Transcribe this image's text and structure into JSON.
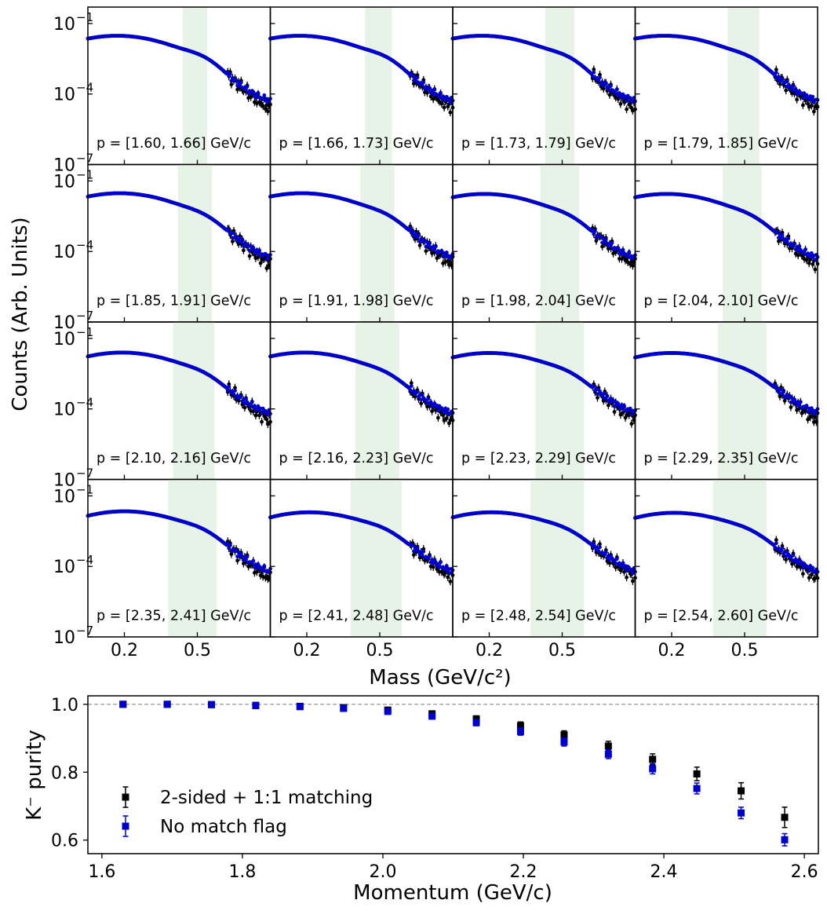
{
  "figure": {
    "ylabel_top": "Counts (Arb. Units)",
    "xlabel_top": "Mass (GeV/c²)",
    "ylabel_bottom": "K⁻ purity",
    "xlabel_bottom": "Momentum (GeV/c)"
  },
  "colors": {
    "black_series": "#000000",
    "blue_series": "#0000cc",
    "shade": "#e6f3e6",
    "refline": "#888888"
  },
  "chart_data": [
    {
      "type": "scatter",
      "kind": "mass-spectra-grid",
      "rows": 4,
      "cols": 4,
      "yscale": "log",
      "ylim": [
        1e-07,
        0.5
      ],
      "xlim": [
        0.05,
        0.8
      ],
      "x_ticks": [
        0.2,
        0.5
      ],
      "x_tick_labels": [
        "0.2",
        "0.5"
      ],
      "y_ticks": [
        1e-07,
        0.0001,
        0.1
      ],
      "y_tick_labels": [
        "10",
        "10",
        "10"
      ],
      "y_tick_exponents": [
        "−7",
        "−4",
        "−1"
      ],
      "series_names": [
        "2-sided + 1:1 matching",
        "No match flag"
      ],
      "panels": [
        {
          "label": "p = [1.60, 1.66] GeV/c",
          "band": [
            0.44,
            0.54
          ],
          "pion_peak": 0.17,
          "pion_height": 0.03,
          "kaon_height": 0.0016,
          "dip": 0.00012,
          "tail_blue": 4e-05,
          "tail_black": 1.2e-05
        },
        {
          "label": "p = [1.66, 1.73] GeV/c",
          "band": [
            0.44,
            0.55
          ],
          "pion_peak": 0.17,
          "pion_height": 0.03,
          "kaon_height": 0.0015,
          "dip": 0.00013,
          "tail_blue": 4e-05,
          "tail_black": 1.4e-05
        },
        {
          "label": "p = [1.73, 1.79] GeV/c",
          "band": [
            0.43,
            0.55
          ],
          "pion_peak": 0.17,
          "pion_height": 0.03,
          "kaon_height": 0.0015,
          "dip": 0.00014,
          "tail_blue": 4e-05,
          "tail_black": 1.3e-05
        },
        {
          "label": "p = [1.79, 1.85] GeV/c",
          "band": [
            0.43,
            0.56
          ],
          "pion_peak": 0.17,
          "pion_height": 0.03,
          "kaon_height": 0.0013,
          "dip": 0.00017,
          "tail_blue": 4e-05,
          "tail_black": 1.3e-05
        },
        {
          "label": "p = [1.85, 1.91] GeV/c",
          "band": [
            0.42,
            0.56
          ],
          "pion_peak": 0.18,
          "pion_height": 0.03,
          "kaon_height": 0.0012,
          "dip": 0.00019,
          "tail_blue": 4e-05,
          "tail_black": 1.3e-05
        },
        {
          "label": "p = [1.91, 1.98] GeV/c",
          "band": [
            0.42,
            0.56
          ],
          "pion_peak": 0.18,
          "pion_height": 0.03,
          "kaon_height": 0.0012,
          "dip": 0.00022,
          "tail_blue": 4e-05,
          "tail_black": 1.4e-05
        },
        {
          "label": "p = [1.98, 2.04] GeV/c",
          "band": [
            0.41,
            0.57
          ],
          "pion_peak": 0.18,
          "pion_height": 0.028,
          "kaon_height": 0.0011,
          "dip": 0.00026,
          "tail_blue": 4e-05,
          "tail_black": 1.5e-05
        },
        {
          "label": "p = [2.04, 2.10] GeV/c",
          "band": [
            0.41,
            0.57
          ],
          "pion_peak": 0.18,
          "pion_height": 0.028,
          "kaon_height": 0.001,
          "dip": 0.0003,
          "tail_blue": 4e-05,
          "tail_black": 1.2e-05
        },
        {
          "label": "p = [2.10, 2.16] GeV/c",
          "band": [
            0.4,
            0.57
          ],
          "pion_peak": 0.19,
          "pion_height": 0.025,
          "kaon_height": 0.001,
          "dip": 0.00035,
          "tail_blue": 5e-05,
          "tail_black": 1.5e-05
        },
        {
          "label": "p = [2.16, 2.23] GeV/c",
          "band": [
            0.4,
            0.58
          ],
          "pion_peak": 0.19,
          "pion_height": 0.025,
          "kaon_height": 0.001,
          "dip": 0.00042,
          "tail_blue": 5e-05,
          "tail_black": 1.5e-05
        },
        {
          "label": "p = [2.23, 2.29] GeV/c",
          "band": [
            0.39,
            0.59
          ],
          "pion_peak": 0.2,
          "pion_height": 0.024,
          "kaon_height": 0.001,
          "dip": 0.0005,
          "tail_blue": 5e-05,
          "tail_black": 1.5e-05
        },
        {
          "label": "p = [2.29, 2.35] GeV/c",
          "band": [
            0.39,
            0.59
          ],
          "pion_peak": 0.2,
          "pion_height": 0.024,
          "kaon_height": 0.0009,
          "dip": 0.0006,
          "tail_blue": 5e-05,
          "tail_black": 1.3e-05
        },
        {
          "label": "p = [2.35, 2.41] GeV/c",
          "band": [
            0.38,
            0.58
          ],
          "pion_peak": 0.2,
          "pion_height": 0.022,
          "kaon_height": 0.0011,
          "dip": 0.0007,
          "tail_blue": 4e-05,
          "tail_black": 1.2e-05
        },
        {
          "label": "p = [2.41, 2.48] GeV/c",
          "band": [
            0.38,
            0.59
          ],
          "pion_peak": 0.21,
          "pion_height": 0.02,
          "kaon_height": 0.001,
          "dip": 0.0008,
          "tail_blue": 4e-05,
          "tail_black": 1.2e-05
        },
        {
          "label": "p = [2.48, 2.54] GeV/c",
          "band": [
            0.37,
            0.59
          ],
          "pion_peak": 0.21,
          "pion_height": 0.02,
          "kaon_height": 0.0009,
          "dip": 0.0009,
          "tail_blue": 4e-05,
          "tail_black": 1.4e-05
        },
        {
          "label": "p = [2.54, 2.60] GeV/c",
          "band": [
            0.37,
            0.59
          ],
          "pion_peak": 0.21,
          "pion_height": 0.019,
          "kaon_height": 0.0008,
          "dip": 0.0009,
          "tail_blue": 4e-05,
          "tail_black": 1.3e-05
        }
      ]
    },
    {
      "type": "scatter",
      "kind": "purity-vs-momentum",
      "xlabel": "Momentum (GeV/c)",
      "ylabel": "K⁻ purity",
      "xlim": [
        1.58,
        2.62
      ],
      "ylim": [
        0.56,
        1.025
      ],
      "x_ticks": [
        1.6,
        1.8,
        2.0,
        2.2,
        2.4,
        2.6
      ],
      "x_tick_labels": [
        "1.6",
        "1.8",
        "2.0",
        "2.2",
        "2.4",
        "2.6"
      ],
      "y_ticks": [
        0.6,
        0.8,
        1.0
      ],
      "y_tick_labels": [
        "0.6",
        "0.8",
        "1.0"
      ],
      "reference_line": 1.0,
      "legend_position": "lower-left",
      "x": [
        1.63,
        1.693,
        1.756,
        1.819,
        1.882,
        1.944,
        2.007,
        2.07,
        2.133,
        2.196,
        2.258,
        2.321,
        2.384,
        2.447,
        2.51,
        2.572
      ],
      "series": [
        {
          "name": "2-sided + 1:1 matching",
          "color": "#000000",
          "values": [
            1.0,
            1.0,
            0.999,
            0.997,
            0.994,
            0.99,
            0.983,
            0.972,
            0.957,
            0.937,
            0.91,
            0.877,
            0.838,
            0.795,
            0.745,
            0.667
          ],
          "errors": [
            0.002,
            0.002,
            0.002,
            0.003,
            0.004,
            0.005,
            0.006,
            0.008,
            0.009,
            0.011,
            0.012,
            0.014,
            0.016,
            0.02,
            0.024,
            0.03
          ]
        },
        {
          "name": "No match flag",
          "color": "#0000cc",
          "values": [
            1.0,
            1.0,
            0.999,
            0.996,
            0.993,
            0.988,
            0.979,
            0.965,
            0.946,
            0.92,
            0.889,
            0.853,
            0.81,
            0.752,
            0.68,
            0.601
          ],
          "errors": [
            0.002,
            0.002,
            0.002,
            0.003,
            0.004,
            0.005,
            0.006,
            0.008,
            0.009,
            0.011,
            0.012,
            0.013,
            0.015,
            0.016,
            0.017,
            0.018
          ]
        }
      ]
    }
  ]
}
